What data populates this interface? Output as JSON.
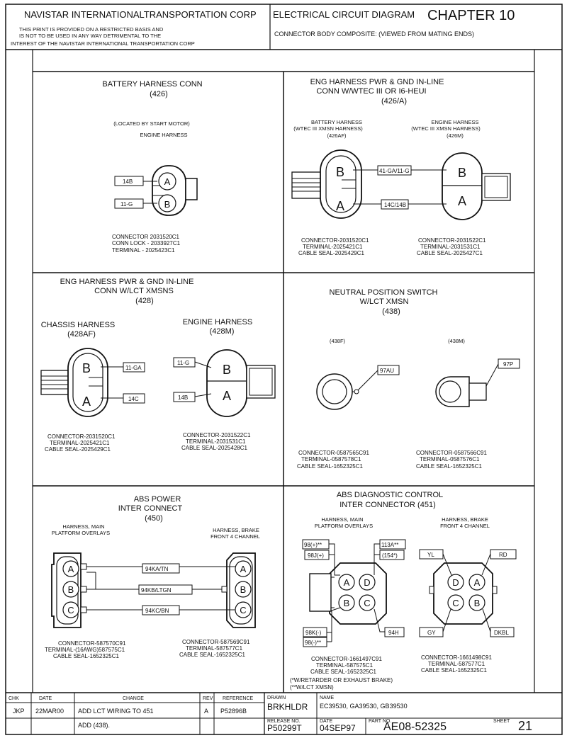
{
  "header": {
    "company": "NAVISTAR INTERNATIONALTRANSPORTATION CORP",
    "notice": [
      "THIS PRINT IS PROVIDED ON A RESTRICTED BASIS AND",
      "IS NOT TO BE USED IN ANY WAY DETRIMENTAL TO THE",
      "INTEREST OF THE NAVISTAR INTERNATIONAL TRANSPORTATION CORP"
    ],
    "diagram_type": "ELECTRICAL CIRCUIT DIAGRAM",
    "chapter": "CHAPTER 10",
    "subtitle": "CONNECTOR BODY COMPOSITE: (VIEWED FROM MATING ENDS)"
  },
  "panels": {
    "p426": {
      "title": [
        "BATTERY HARNESS CONN",
        "(426)"
      ],
      "note": "(LOCATED BY START MOTOR)",
      "harness": "ENGINE HARNESS",
      "wires": [
        "14B",
        "11-G"
      ],
      "pins": [
        "A",
        "B"
      ],
      "specs": [
        "CONNECTOR    2031520C1",
        "CONN LOCK - 2033927C1",
        "TERMINAL - 2025423C1"
      ]
    },
    "p426a": {
      "title": [
        "ENG HARNESS PWR & GND IN-LINE",
        "CONN W/WTEC III OR I6-HEUI",
        "(426/A)"
      ],
      "left_label": [
        "BATTERY HARNESS",
        "(WTEC III XMSN HARNESS)",
        "(426AF)"
      ],
      "right_label": [
        "ENGINE HARNESS",
        "(WTEC III XMSN HARNESS)",
        "(426M)"
      ],
      "wires": [
        "41-GA/11-G",
        "14C/14B"
      ],
      "pins": [
        "B",
        "A"
      ],
      "left_specs": [
        "CONNECTOR-2031520C1",
        "TERMINAL-2025421C1",
        "CABLE SEAL-2025429C1"
      ],
      "right_specs": [
        "CONNECTOR-2031522C1",
        "TERMINAL-2031531C1",
        "CABLE SEAL-2025427C1"
      ]
    },
    "p428": {
      "title": [
        "ENG HARNESS PWR & GND IN-LINE",
        "CONN W/LCT XMSNS",
        "(428)"
      ],
      "left_label": [
        "CHASSIS HARNESS",
        "(428AF)"
      ],
      "right_label": [
        "ENGINE HARNESS",
        "(428M)"
      ],
      "left_wires": [
        "11-GA",
        "14C"
      ],
      "right_wires": [
        "11-G",
        "14B"
      ],
      "pins": [
        "B",
        "A"
      ],
      "left_specs": [
        "CONNECTOR-2031520C1",
        "TERMINAL-2025421C1",
        "CABLE SEAL-2025429C1"
      ],
      "right_specs": [
        "CONNECTOR-2031522C1",
        "TERMINAL-2031531C1",
        "CABLE SEAL-2025428C1"
      ]
    },
    "p438": {
      "title": [
        "NEUTRAL POSITION SWITCH",
        "W/LCT XMSN",
        "(438)"
      ],
      "left_label": "(438F)",
      "right_label": "(438M)",
      "left_wire": "97AU",
      "right_wire": "97P",
      "left_specs": [
        "CONNECTOR-0587565C91",
        "TERMINAL-0587578C1",
        "CABLE SEAL-1652325C1"
      ],
      "right_specs": [
        "CONNECTOR-0587566C91",
        "TERMINAL-0587576C1",
        "CABLE SEAL-1652325C1"
      ]
    },
    "p450": {
      "title": [
        "ABS POWER",
        "INTER CONNECT",
        "(450)"
      ],
      "left_label": [
        "HARNESS, MAIN",
        "PLATFORM OVERLAYS"
      ],
      "right_label": [
        "HARNESS, BRAKE",
        "FRONT 4 CHANNEL"
      ],
      "wires": [
        "94KA/TN",
        "94KB/LTGN",
        "94KC/BN"
      ],
      "pins": [
        "A",
        "B",
        "C"
      ],
      "left_specs": [
        "CONNECTOR-587570C91",
        "TERMINAL-(16AWG)587575C1",
        "CABLE SEAL-1652325C1"
      ],
      "right_specs": [
        "CONNECTOR-587569C91",
        "TERMINAL-587577C1",
        "CABLE SEAL-1652325C1"
      ]
    },
    "p451": {
      "title": [
        "ABS DIAGNOSTIC CONTROL",
        "INTER CONNECTOR (451)"
      ],
      "left_label": [
        "HARNESS, MAIN",
        "PLATFORM OVERLAYS"
      ],
      "right_label": [
        "HARNESS, BRAKE",
        "FRONT 4 CHANNEL"
      ],
      "left_wires": [
        "98(+)**",
        "98J(+)",
        "113A**",
        "(154*)",
        "98K(-)",
        "98(-)**",
        "94H"
      ],
      "left_pins": [
        "A",
        "D",
        "B",
        "C"
      ],
      "right_wires": [
        "YL",
        "RD",
        "GY",
        "DKBL"
      ],
      "right_pins": [
        "D",
        "A",
        "C",
        "B"
      ],
      "left_specs": [
        "CONNECTOR-1661497C91",
        "TERMINAL-587575C1",
        "CABLE SEAL-1652325C1"
      ],
      "right_specs": [
        "CONNECTOR-1661498C91",
        "TERMINAL-587577C1",
        "CABLE SEAL-1652325C1"
      ],
      "footnotes": [
        "(*W/RETARDER OR EXHAUST BRAKE)",
        "(**W/LCT XMSN)"
      ]
    }
  },
  "title_block": {
    "col_headers": [
      "CHK",
      "DATE",
      "CHANGE",
      "REV",
      "REFERENCE"
    ],
    "rows": [
      {
        "chk": "JKP",
        "date": "22MAR00",
        "change": "ADD LCT WIRING TO 451",
        "rev": "A",
        "ref": "P52896B"
      },
      {
        "chk": "",
        "date": "",
        "change": "ADD (438).",
        "rev": "",
        "ref": ""
      }
    ],
    "drawn_label": "DRAWN",
    "drawn": "BRKHLDR",
    "name_label": "NAME",
    "name": "EC39530, GA39530, GB39530",
    "release_label": "RELEASE NO.",
    "release": "P50299T",
    "date_label": "DATE",
    "date": "04SEP97",
    "part_label": "PART NO.",
    "part": "AE08-52325",
    "sheet_label": "SHEET",
    "sheet": "21"
  }
}
